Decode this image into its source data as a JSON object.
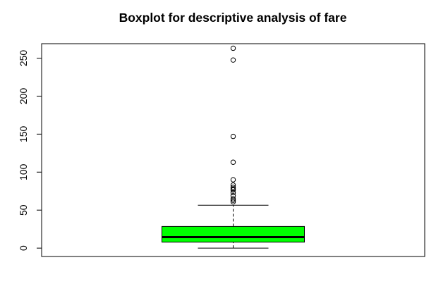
{
  "chart_data": {
    "type": "boxplot",
    "title": "Boxplot for descriptive analysis of fare",
    "xlabel": "",
    "ylabel": "",
    "ylim": [
      -11,
      269
    ],
    "yticks": [
      0,
      50,
      100,
      150,
      200,
      250
    ],
    "ytick_labels": [
      "0",
      "50",
      "100",
      "150",
      "200",
      "250"
    ],
    "box": {
      "min": 0,
      "q1": 7.9,
      "median": 14.5,
      "q3": 28.5,
      "whisker_high": 56.5
    },
    "outliers": [
      263,
      247.5,
      147,
      113,
      90,
      83,
      80,
      78,
      76.5,
      73,
      69,
      65,
      63,
      61
    ],
    "box_color": "#00ff00",
    "grid": false
  }
}
